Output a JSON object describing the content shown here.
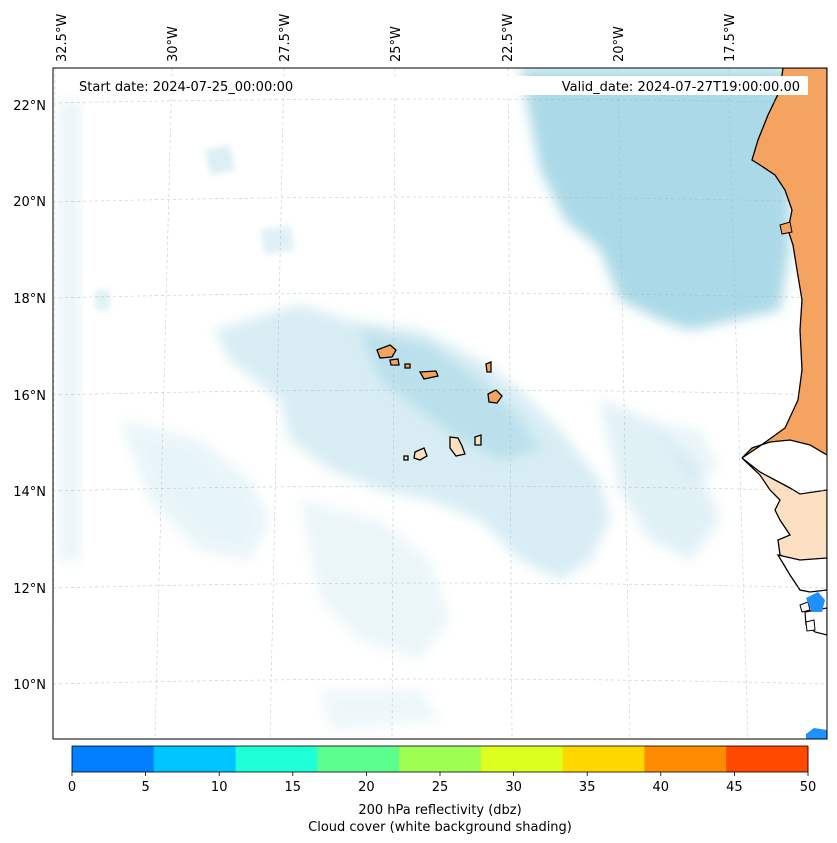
{
  "map": {
    "start_label": "Start date: 2024-07-25_00:00:00",
    "valid_label": "Valid_date: 2024-07-27T19:00:00.00",
    "lon_labels": [
      "32.5°W",
      "30°W",
      "27.5°W",
      "25°W",
      "22.5°W",
      "20°W",
      "17.5°W"
    ],
    "lat_labels": [
      "22°N",
      "20°N",
      "18°N",
      "16°N",
      "14°N",
      "12°N",
      "10°N"
    ]
  },
  "colorbar": {
    "ticks": [
      "0",
      "5",
      "10",
      "15",
      "20",
      "25",
      "30",
      "35",
      "40",
      "45",
      "50"
    ],
    "colors": [
      "#0080ff",
      "#00c4ff",
      "#1effd8",
      "#5cff8e",
      "#9cff52",
      "#dbff1e",
      "#ffd800",
      "#ff8c00",
      "#ff4800"
    ],
    "label_line1": "200 hPa reflectivity (dbz)",
    "label_line2": "Cloud cover (white background shading)"
  },
  "colors": {
    "cloud": "#a8d8e6",
    "land_orange": "#f4a460",
    "land_pale": "#fde0c2",
    "reflectivity_blue": "#1e90ff",
    "grid": "#b0b0b0"
  }
}
